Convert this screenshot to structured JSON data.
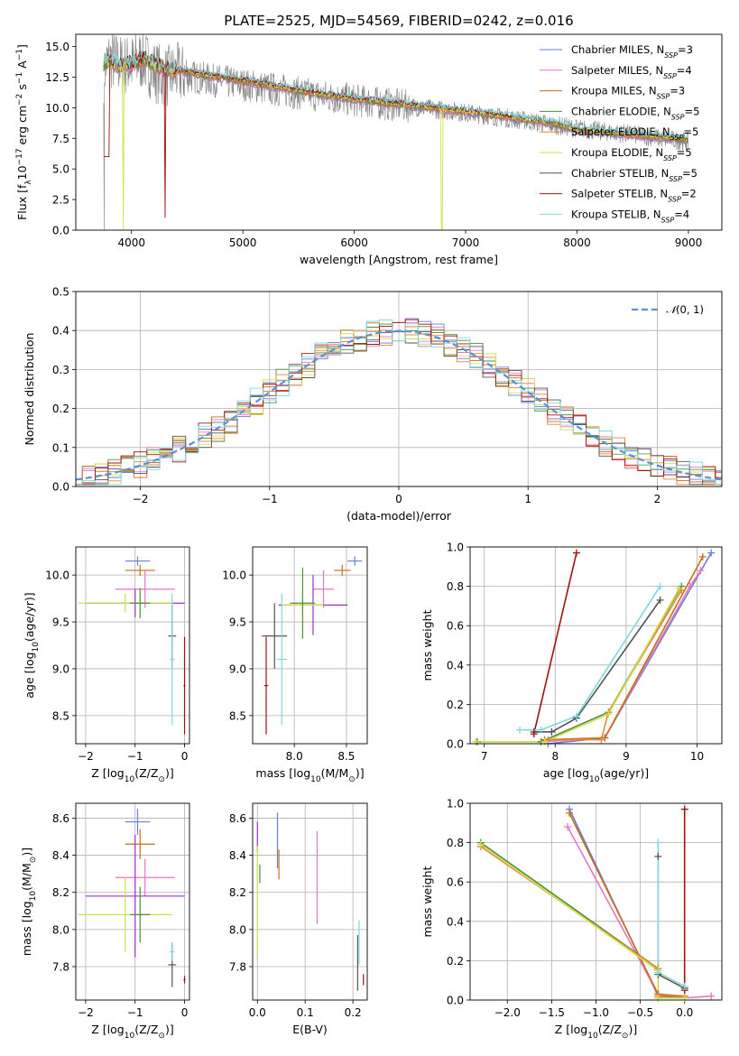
{
  "chart_data": [
    {
      "type": "line",
      "title": "PLATE=2525, MJD=54569, FIBERID=0242, z=0.016",
      "xlabel": "wavelength [Angstrom, rest frame]",
      "ylabel_parts": [
        "Flux [f",
        "λ",
        "10",
        "−17",
        " erg cm",
        "−2",
        " s",
        "−1",
        " A",
        "−1",
        "]"
      ],
      "xlim": [
        3500,
        9300
      ],
      "ylim": [
        0,
        16
      ],
      "xticks": [
        4000,
        5000,
        6000,
        7000,
        8000,
        9000
      ],
      "yticks": [
        0.0,
        2.5,
        5.0,
        7.5,
        10.0,
        12.5,
        15.0
      ],
      "grid": false,
      "legend_position": "upper right",
      "observed_spectrum": {
        "color": "#808080",
        "x": [
          3750,
          3800,
          3900,
          4000,
          4100,
          4200,
          4300,
          4400,
          4500,
          4700,
          5000,
          5500,
          6000,
          6500,
          7000,
          7500,
          8000,
          8500,
          9000
        ],
        "y": [
          13,
          14,
          13.5,
          13.5,
          14,
          13,
          12.5,
          12.8,
          12.6,
          12.3,
          11.9,
          11.2,
          10.6,
          10.1,
          9.6,
          9.0,
          8.3,
          7.8,
          7.2
        ]
      },
      "series": [
        {
          "name_parts": [
            "Chabrier MILES, N",
            "SSP",
            "=3"
          ],
          "color": "#6a7fd6"
        },
        {
          "name_parts": [
            "Salpeter MILES, N",
            "SSP",
            "=4"
          ],
          "color": "#e377c2"
        },
        {
          "name_parts": [
            "Kroupa MILES, N",
            "SSP",
            "=3"
          ],
          "color": "#c86e14"
        },
        {
          "name_parts": [
            "Chabrier ELODIE, N",
            "SSP",
            "=5"
          ],
          "color": "#4d8f3a"
        },
        {
          "name_parts": [
            "Salpeter ELODIE, N",
            "SSP",
            "=5"
          ],
          "color": "#e8843c"
        },
        {
          "name_parts": [
            "Kroupa ELODIE, N",
            "SSP",
            "=5"
          ],
          "color": "#cfe04a"
        },
        {
          "name_parts": [
            "Chabrier STELIB, N",
            "SSP",
            "=5"
          ],
          "color": "#555555"
        },
        {
          "name_parts": [
            "Salpeter STELIB, N",
            "SSP",
            "=2"
          ],
          "color": "#a01010"
        },
        {
          "name_parts": [
            "Kroupa STELIB, N",
            "SSP",
            "=4"
          ],
          "color": "#7fd8dc"
        }
      ],
      "model_continuum": {
        "x": [
          3750,
          3900,
          4000,
          4100,
          4300,
          4500,
          5000,
          5500,
          6000,
          6500,
          7000,
          7500,
          7800,
          8000,
          8500,
          9000
        ],
        "y": [
          13.8,
          13.5,
          13.6,
          14.0,
          13.2,
          12.9,
          12.2,
          11.4,
          10.7,
          10.2,
          9.7,
          9.1,
          8.7,
          8.2,
          7.8,
          7.4
        ]
      }
    },
    {
      "type": "line",
      "xlabel": "(data-model)/error",
      "ylabel": "Normed distribution",
      "xlim": [
        -2.5,
        2.5
      ],
      "ylim": [
        0,
        0.5
      ],
      "xticks": [
        -2,
        -1,
        0,
        1,
        2
      ],
      "yticks": [
        0.0,
        0.1,
        0.2,
        0.3,
        0.4,
        0.5
      ],
      "grid": true,
      "legend_label_text": "(0, 1)",
      "legend_position": "upper right",
      "gaussian": {
        "mu": 0,
        "sigma": 1,
        "color": "#5b8fd6"
      },
      "hist_bin_width": 0.1
    },
    {
      "type": "scatter",
      "xlabel_parts": [
        "Z [log",
        "10",
        "(Z/Z",
        "⊙",
        ")]"
      ],
      "ylabel_parts": [
        "age  [log",
        "10",
        "(age/yr)]"
      ],
      "xlim": [
        -2.2,
        0.1
      ],
      "ylim": [
        8.2,
        10.3
      ],
      "xticks": [
        -2,
        -1,
        0
      ],
      "yticks": [
        8.5,
        9.0,
        9.5,
        10.0
      ],
      "grid": true,
      "points": [
        {
          "x": -0.95,
          "xe": 0.25,
          "y": 10.15,
          "ye": 0.05,
          "color": "#6a7fd6"
        },
        {
          "x": -0.9,
          "xe": 0.3,
          "y": 10.05,
          "ye": 0.06,
          "color": "#c86e14"
        },
        {
          "x": -0.8,
          "xe": 0.6,
          "y": 9.85,
          "ye": 0.2,
          "color": "#e377c2"
        },
        {
          "x": -1.0,
          "xe": 1.0,
          "y": 9.7,
          "ye": 0.15,
          "color": "#9b30d0"
        },
        {
          "x": -1.2,
          "xe": 0.95,
          "y": 9.7,
          "ye": 0.1,
          "color": "#cfe04a"
        },
        {
          "x": -0.9,
          "xe": 0.2,
          "y": 9.7,
          "ye": 0.16,
          "color": "#4d8f3a"
        },
        {
          "x": -0.25,
          "xe": 0.08,
          "y": 9.35,
          "ye": 0.33,
          "color": "#555555"
        },
        {
          "x": -0.25,
          "xe": 0.05,
          "y": 9.1,
          "ye": 0.7,
          "color": "#7fd8dc"
        },
        {
          "x": 0.0,
          "xe": 0.02,
          "y": 8.82,
          "ye": 0.52,
          "color": "#a01010"
        }
      ]
    },
    {
      "type": "scatter",
      "xlabel_parts": [
        "mass [log",
        "10",
        "(M/M",
        "⊙",
        ")]"
      ],
      "xlim": [
        7.6,
        8.7
      ],
      "ylim": [
        8.2,
        10.3
      ],
      "xticks": [
        8.0,
        8.5
      ],
      "yticks": [
        8.5,
        9.0,
        9.5,
        10.0
      ],
      "grid": true,
      "points": [
        {
          "x": 8.58,
          "xe": 0.07,
          "y": 10.15,
          "ye": 0.05,
          "color": "#6a7fd6"
        },
        {
          "x": 8.46,
          "xe": 0.08,
          "y": 10.05,
          "ye": 0.06,
          "color": "#c86e14"
        },
        {
          "x": 8.28,
          "xe": 0.1,
          "y": 9.85,
          "ye": 0.2,
          "color": "#e377c2"
        },
        {
          "x": 8.18,
          "xe": 0.33,
          "y": 9.68,
          "ye": 0.32,
          "color": "#9b30d0"
        },
        {
          "x": 8.08,
          "xe": 0.2,
          "y": 9.68,
          "ye": 0.15,
          "color": "#cfe04a"
        },
        {
          "x": 8.08,
          "xe": 0.12,
          "y": 9.7,
          "ye": 0.38,
          "color": "#4d8f3a"
        },
        {
          "x": 7.81,
          "xe": 0.12,
          "y": 9.35,
          "ye": 0.35,
          "color": "#555555"
        },
        {
          "x": 7.88,
          "xe": 0.05,
          "y": 9.1,
          "ye": 0.7,
          "color": "#7fd8dc"
        },
        {
          "x": 7.73,
          "xe": 0.02,
          "y": 8.82,
          "ye": 0.52,
          "color": "#a01010"
        }
      ]
    },
    {
      "type": "line",
      "xlabel_parts": [
        "age  [log",
        "10",
        "(age/yr)]"
      ],
      "ylabel": "mass weight",
      "xlim": [
        6.8,
        10.35
      ],
      "ylim": [
        0,
        1.0
      ],
      "xticks": [
        7,
        8,
        9,
        10
      ],
      "yticks": [
        0.0,
        0.2,
        0.4,
        0.6,
        0.8,
        1.0
      ],
      "grid": true,
      "series": [
        {
          "color": "#6a7fd6",
          "x": [
            7.9,
            8.7,
            10.2
          ],
          "y": [
            0.0,
            0.03,
            0.97
          ]
        },
        {
          "color": "#e377c2",
          "x": [
            7.8,
            8.7,
            9.9,
            10.05
          ],
          "y": [
            0.01,
            0.03,
            0.8,
            0.88
          ]
        },
        {
          "color": "#c86e14",
          "x": [
            7.85,
            8.7,
            10.08
          ],
          "y": [
            0.02,
            0.03,
            0.95
          ]
        },
        {
          "color": "#4d8f3a",
          "x": [
            6.9,
            7.8,
            8.75,
            9.78
          ],
          "y": [
            0.01,
            0.01,
            0.16,
            0.8
          ]
        },
        {
          "color": "#e8843c",
          "x": [
            7.9,
            8.65,
            8.75,
            9.78
          ],
          "y": [
            0.02,
            0.02,
            0.16,
            0.78
          ]
        },
        {
          "color": "#cfe04a",
          "x": [
            6.88,
            7.85,
            8.75,
            9.75
          ],
          "y": [
            0.01,
            0.01,
            0.15,
            0.79
          ]
        },
        {
          "color": "#555555",
          "x": [
            7.7,
            7.95,
            8.3,
            9.48
          ],
          "y": [
            0.06,
            0.06,
            0.13,
            0.73
          ]
        },
        {
          "color": "#a01010",
          "x": [
            7.7,
            8.3
          ],
          "y": [
            0.05,
            0.97
          ]
        },
        {
          "color": "#7fd8dc",
          "x": [
            7.5,
            7.8,
            8.3,
            9.48
          ],
          "y": [
            0.07,
            0.07,
            0.14,
            0.8
          ]
        }
      ]
    },
    {
      "type": "scatter",
      "xlabel_parts": [
        "Z [log",
        "10",
        "(Z/Z",
        "⊙",
        ")]"
      ],
      "ylabel_parts": [
        "mass [log",
        "10",
        "(M/M",
        "⊙",
        ")]"
      ],
      "xlim": [
        -2.2,
        0.1
      ],
      "ylim": [
        7.62,
        8.68
      ],
      "xticks": [
        -2,
        -1,
        0
      ],
      "yticks": [
        7.8,
        8.0,
        8.2,
        8.4,
        8.6
      ],
      "grid": true,
      "points": [
        {
          "x": -0.95,
          "xe": 0.25,
          "y": 8.58,
          "ye": 0.07,
          "color": "#6a7fd6"
        },
        {
          "x": -0.9,
          "xe": 0.3,
          "y": 8.46,
          "ye": 0.08,
          "color": "#c86e14"
        },
        {
          "x": -0.8,
          "xe": 0.6,
          "y": 8.28,
          "ye": 0.1,
          "color": "#e377c2"
        },
        {
          "x": -1.0,
          "xe": 1.0,
          "y": 8.18,
          "ye": 0.33,
          "color": "#9b30d0"
        },
        {
          "x": -1.2,
          "xe": 0.95,
          "y": 8.08,
          "ye": 0.2,
          "color": "#cfe04a"
        },
        {
          "x": -0.9,
          "xe": 0.2,
          "y": 8.08,
          "ye": 0.15,
          "color": "#4d8f3a"
        },
        {
          "x": -0.25,
          "xe": 0.08,
          "y": 7.81,
          "ye": 0.12,
          "color": "#555555"
        },
        {
          "x": -0.25,
          "xe": 0.05,
          "y": 7.88,
          "ye": 0.05,
          "color": "#7fd8dc"
        },
        {
          "x": 0.0,
          "xe": 0.02,
          "y": 7.73,
          "ye": 0.02,
          "color": "#a01010"
        }
      ]
    },
    {
      "type": "scatter",
      "xlabel": "E(B-V)",
      "xlim": [
        -0.01,
        0.23
      ],
      "ylim": [
        7.62,
        8.68
      ],
      "xticks": [
        0.0,
        0.1,
        0.2
      ],
      "yticks": [
        7.8,
        8.0,
        8.2,
        8.4,
        8.6
      ],
      "grid": true,
      "points": [
        {
          "x": 0.0,
          "xe": 0.0,
          "y": 8.5,
          "ye": 0.08,
          "color": "#9b30d0"
        },
        {
          "x": 0.0,
          "xe": 0.0,
          "y": 8.15,
          "ye": 0.3,
          "color": "#cfe04a"
        },
        {
          "x": 0.005,
          "xe": 0.0,
          "y": 8.3,
          "ye": 0.05,
          "color": "#4d8f3a"
        },
        {
          "x": 0.042,
          "xe": 0.0,
          "y": 8.48,
          "ye": 0.15,
          "color": "#6a7fd6"
        },
        {
          "x": 0.045,
          "xe": 0.0,
          "y": 8.35,
          "ye": 0.08,
          "color": "#c86e14"
        },
        {
          "x": 0.125,
          "xe": 0.0,
          "y": 8.28,
          "ye": 0.25,
          "color": "#e377c2"
        },
        {
          "x": 0.21,
          "xe": 0.0,
          "y": 7.82,
          "ye": 0.15,
          "color": "#555555"
        },
        {
          "x": 0.213,
          "xe": 0.0,
          "y": 7.93,
          "ye": 0.12,
          "color": "#7fd8dc"
        },
        {
          "x": 0.222,
          "xe": 0.0,
          "y": 7.73,
          "ye": 0.03,
          "color": "#a01010"
        }
      ]
    },
    {
      "type": "line",
      "xlabel_parts": [
        "Z [log",
        "10",
        "(Z/Z",
        "⊙",
        ")]"
      ],
      "ylabel": "mass weight",
      "xlim": [
        -2.42,
        0.42
      ],
      "ylim": [
        0,
        1.0
      ],
      "xticks": [
        -2.0,
        -1.5,
        -1.0,
        -0.5,
        0.0
      ],
      "yticks": [
        0.0,
        0.2,
        0.4,
        0.6,
        0.8,
        1.0
      ],
      "grid": true,
      "series": [
        {
          "color": "#6a7fd6",
          "x": [
            -1.3,
            -0.3,
            0.0
          ],
          "y": [
            0.97,
            0.02,
            0.01
          ]
        },
        {
          "color": "#e377c2",
          "x": [
            -1.32,
            -0.3,
            0.0,
            0.3
          ],
          "y": [
            0.88,
            0.03,
            0.01,
            0.02
          ]
        },
        {
          "color": "#c86e14",
          "x": [
            -1.3,
            -0.3,
            0.0
          ],
          "y": [
            0.95,
            0.03,
            0.02
          ]
        },
        {
          "color": "#4d8f3a",
          "x": [
            -2.3,
            -0.3,
            -0.3,
            0.0
          ],
          "y": [
            0.8,
            0.16,
            0.01,
            0.02
          ]
        },
        {
          "color": "#e8843c",
          "x": [
            -2.3,
            -0.3,
            -0.3,
            0.0
          ],
          "y": [
            0.78,
            0.16,
            0.02,
            0.02
          ]
        },
        {
          "color": "#cfe04a",
          "x": [
            -2.3,
            -0.3,
            -0.3,
            0.0
          ],
          "y": [
            0.79,
            0.15,
            0.01,
            0.01
          ]
        },
        {
          "color": "#555555",
          "x": [
            -0.3,
            -0.3,
            0.0
          ],
          "y": [
            0.73,
            0.13,
            0.06
          ]
        },
        {
          "color": "#a01010",
          "x": [
            0.0,
            0.0
          ],
          "y": [
            0.97,
            0.05
          ]
        },
        {
          "color": "#7fd8dc",
          "x": [
            -0.3,
            -0.3,
            0.0
          ],
          "y": [
            0.8,
            0.14,
            0.07
          ]
        }
      ]
    }
  ]
}
